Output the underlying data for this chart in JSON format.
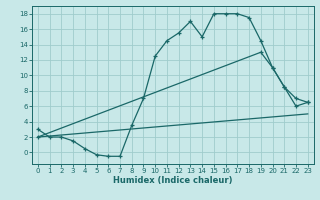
{
  "title": "",
  "xlabel": "Humidex (Indice chaleur)",
  "background_color": "#c8e8e8",
  "grid_color": "#a0cccc",
  "line_color": "#1a6868",
  "xlim": [
    -0.5,
    23.5
  ],
  "ylim": [
    -1.5,
    19.0
  ],
  "xticks": [
    0,
    1,
    2,
    3,
    4,
    5,
    6,
    7,
    8,
    9,
    10,
    11,
    12,
    13,
    14,
    15,
    16,
    17,
    18,
    19,
    20,
    21,
    22,
    23
  ],
  "yticks": [
    0,
    2,
    4,
    6,
    8,
    10,
    12,
    14,
    16,
    18
  ],
  "line1_x": [
    0,
    1,
    2,
    3,
    4,
    5,
    6,
    7,
    8,
    9,
    10,
    11,
    12,
    13,
    14,
    15,
    16,
    17,
    18,
    19,
    20,
    21,
    22,
    23
  ],
  "line1_y": [
    3.0,
    2.0,
    2.0,
    1.5,
    0.5,
    -0.3,
    -0.5,
    -0.5,
    3.5,
    7.0,
    12.5,
    14.5,
    15.5,
    17.0,
    15.0,
    18.0,
    18.0,
    18.0,
    17.5,
    14.5,
    11.0,
    8.5,
    7.0,
    6.5
  ],
  "line2_x": [
    0,
    19,
    20,
    21,
    22,
    23
  ],
  "line2_y": [
    2.0,
    13.0,
    11.0,
    8.5,
    6.0,
    6.5
  ],
  "line3_x": [
    0,
    23
  ],
  "line3_y": [
    2.0,
    5.0
  ]
}
